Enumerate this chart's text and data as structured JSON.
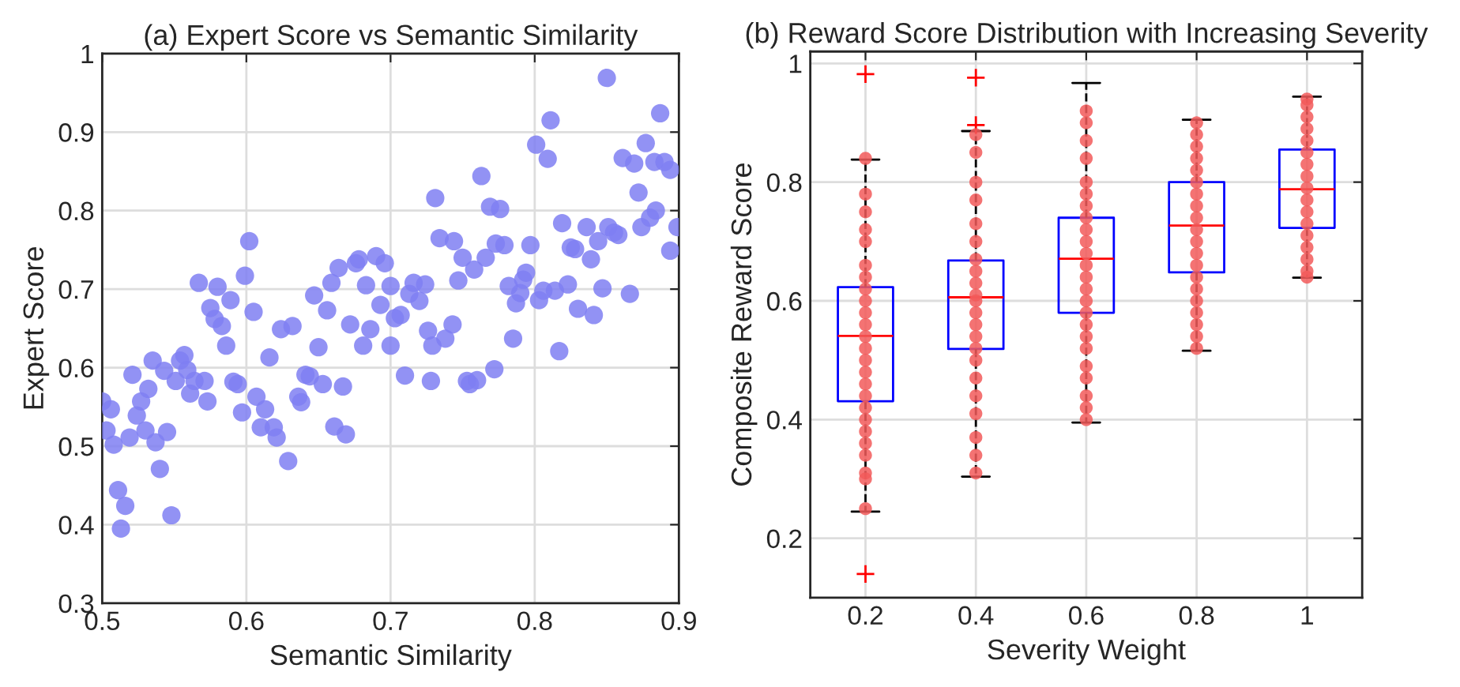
{
  "chart_data": [
    {
      "type": "scatter",
      "title": "(a) Expert Score vs Semantic Similarity",
      "xlabel": "Semantic Similarity",
      "ylabel": "Expert Score",
      "xlim": [
        0.5,
        0.9
      ],
      "xticks": [
        0.5,
        0.6,
        0.7,
        0.8,
        0.9
      ],
      "ylim": [
        0.3,
        1
      ],
      "yticks": [
        0.3,
        0.4,
        0.5,
        0.6,
        0.7,
        0.8,
        0.9,
        1
      ],
      "grid": true,
      "marker": "circle",
      "series": [
        {
          "color": "#7f7ff2",
          "x": [
            0.5,
            0.503,
            0.506,
            0.508,
            0.511,
            0.516,
            0.513,
            0.519,
            0.521,
            0.524,
            0.527,
            0.53,
            0.532,
            0.535,
            0.537,
            0.54,
            0.543,
            0.545,
            0.548,
            0.551,
            0.554,
            0.557,
            0.559,
            0.561,
            0.564,
            0.567,
            0.571,
            0.573,
            0.575,
            0.578,
            0.58,
            0.583,
            0.586,
            0.589,
            0.591,
            0.594,
            0.597,
            0.599,
            0.602,
            0.605,
            0.607,
            0.61,
            0.613,
            0.616,
            0.619,
            0.621,
            0.624,
            0.629,
            0.632,
            0.636,
            0.638,
            0.641,
            0.644,
            0.647,
            0.65,
            0.653,
            0.656,
            0.659,
            0.661,
            0.664,
            0.667,
            0.669,
            0.672,
            0.676,
            0.678,
            0.681,
            0.683,
            0.686,
            0.69,
            0.693,
            0.696,
            0.7,
            0.7,
            0.703,
            0.707,
            0.71,
            0.713,
            0.716,
            0.72,
            0.724,
            0.726,
            0.729,
            0.731,
            0.728,
            0.734,
            0.738,
            0.743,
            0.744,
            0.747,
            0.75,
            0.753,
            0.755,
            0.758,
            0.76,
            0.763,
            0.766,
            0.769,
            0.772,
            0.773,
            0.776,
            0.779,
            0.782,
            0.785,
            0.787,
            0.79,
            0.792,
            0.794,
            0.797,
            0.801,
            0.803,
            0.806,
            0.809,
            0.811,
            0.814,
            0.817,
            0.819,
            0.823,
            0.825,
            0.828,
            0.83,
            0.836,
            0.839,
            0.841,
            0.844,
            0.847,
            0.85,
            0.851,
            0.855,
            0.858,
            0.861,
            0.866,
            0.869,
            0.872,
            0.874,
            0.877,
            0.88,
            0.883,
            0.884,
            0.887,
            0.89,
            0.894,
            0.894,
            0.899
          ],
          "values": [
            0.557,
            0.52,
            0.547,
            0.502,
            0.444,
            0.424,
            0.395,
            0.511,
            0.591,
            0.539,
            0.557,
            0.52,
            0.573,
            0.609,
            0.505,
            0.471,
            0.596,
            0.518,
            0.412,
            0.583,
            0.609,
            0.616,
            0.597,
            0.567,
            0.583,
            0.708,
            0.583,
            0.557,
            0.676,
            0.662,
            0.703,
            0.653,
            0.628,
            0.686,
            0.582,
            0.579,
            0.543,
            0.717,
            0.761,
            0.671,
            0.563,
            0.524,
            0.547,
            0.613,
            0.524,
            0.511,
            0.649,
            0.481,
            0.653,
            0.563,
            0.556,
            0.591,
            0.589,
            0.692,
            0.626,
            0.579,
            0.673,
            0.708,
            0.525,
            0.727,
            0.576,
            0.515,
            0.655,
            0.733,
            0.738,
            0.628,
            0.705,
            0.649,
            0.742,
            0.68,
            0.733,
            0.704,
            0.628,
            0.663,
            0.667,
            0.59,
            0.694,
            0.708,
            0.685,
            0.706,
            0.647,
            0.628,
            0.816,
            0.583,
            0.765,
            0.637,
            0.655,
            0.761,
            0.711,
            0.74,
            0.583,
            0.579,
            0.725,
            0.584,
            0.844,
            0.74,
            0.805,
            0.598,
            0.758,
            0.802,
            0.756,
            0.704,
            0.637,
            0.682,
            0.695,
            0.712,
            0.721,
            0.756,
            0.884,
            0.686,
            0.698,
            0.866,
            0.915,
            0.698,
            0.621,
            0.784,
            0.706,
            0.753,
            0.751,
            0.675,
            0.779,
            0.738,
            0.667,
            0.761,
            0.701,
            0.969,
            0.779,
            0.772,
            0.769,
            0.867,
            0.694,
            0.86,
            0.823,
            0.779,
            0.886,
            0.791,
            0.862,
            0.8,
            0.924,
            0.862,
            0.852,
            0.749,
            0.779
          ]
        }
      ]
    },
    {
      "type": "box",
      "title": "(b) Reward Score Distribution with Increasing Severity",
      "xlabel": "Severity Weight",
      "ylabel": "Composite Reward Score",
      "xlim": [
        0.1,
        1.1
      ],
      "xticks": [
        0.2,
        0.4,
        0.6,
        0.8,
        1
      ],
      "ylim": [
        0.1,
        1.02
      ],
      "yticks": [
        0.2,
        0.4,
        0.6,
        0.8,
        1
      ],
      "grid": true,
      "series": [
        {
          "type": "box",
          "color": "#0000ff",
          "x": [
            0.2,
            0.4,
            0.6,
            0.8,
            1
          ],
          "boxes": [
            {
              "low": 0.245,
              "q1": 0.431,
              "median": 0.541,
              "q3": 0.623,
              "high": 0.838,
              "outliers": [
                0.982,
                0.14
              ]
            },
            {
              "low": 0.304,
              "q1": 0.519,
              "median": 0.606,
              "q3": 0.668,
              "high": 0.886,
              "outliers": [
                0.976,
                0.896
              ]
            },
            {
              "low": 0.395,
              "q1": 0.58,
              "median": 0.671,
              "q3": 0.74,
              "high": 0.967
            },
            {
              "low": 0.516,
              "q1": 0.648,
              "median": 0.727,
              "q3": 0.8,
              "high": 0.905
            },
            {
              "low": 0.639,
              "q1": 0.723,
              "median": 0.788,
              "q3": 0.855,
              "high": 0.944
            }
          ]
        },
        {
          "type": "scatter",
          "color": "#f25a5a",
          "marker": "circle",
          "x": [
            0.2,
            0.2,
            0.2,
            0.2,
            0.2,
            0.2,
            0.2,
            0.2,
            0.2,
            0.2,
            0.2,
            0.2,
            0.2,
            0.2,
            0.2,
            0.2,
            0.2,
            0.2,
            0.2,
            0.2,
            0.2,
            0.2,
            0.2,
            0.2,
            0.2,
            0.4,
            0.4,
            0.4,
            0.4,
            0.4,
            0.4,
            0.4,
            0.4,
            0.4,
            0.4,
            0.4,
            0.4,
            0.4,
            0.4,
            0.4,
            0.4,
            0.4,
            0.4,
            0.4,
            0.4,
            0.4,
            0.4,
            0.6,
            0.6,
            0.6,
            0.6,
            0.6,
            0.6,
            0.6,
            0.6,
            0.6,
            0.6,
            0.6,
            0.6,
            0.6,
            0.6,
            0.6,
            0.6,
            0.6,
            0.6,
            0.6,
            0.6,
            0.6,
            0.6,
            0.6,
            0.6,
            0.8,
            0.8,
            0.8,
            0.8,
            0.8,
            0.8,
            0.8,
            0.8,
            0.8,
            0.8,
            0.8,
            0.8,
            0.8,
            0.8,
            0.8,
            0.8,
            0.8,
            0.8,
            0.8,
            0.8,
            1,
            1,
            1,
            1,
            1,
            1,
            1,
            1,
            1,
            1,
            1,
            1,
            1,
            1,
            1,
            1,
            1
          ],
          "values": [
            0.78,
            0.75,
            0.72,
            0.7,
            0.66,
            0.64,
            0.62,
            0.6,
            0.58,
            0.56,
            0.54,
            0.52,
            0.5,
            0.48,
            0.46,
            0.44,
            0.42,
            0.4,
            0.38,
            0.36,
            0.34,
            0.31,
            0.3,
            0.25,
            0.84,
            0.88,
            0.85,
            0.8,
            0.77,
            0.73,
            0.7,
            0.67,
            0.65,
            0.63,
            0.61,
            0.6,
            0.58,
            0.56,
            0.54,
            0.52,
            0.5,
            0.47,
            0.44,
            0.41,
            0.37,
            0.34,
            0.31,
            0.92,
            0.9,
            0.87,
            0.84,
            0.8,
            0.78,
            0.76,
            0.74,
            0.72,
            0.7,
            0.68,
            0.66,
            0.64,
            0.62,
            0.6,
            0.58,
            0.56,
            0.54,
            0.52,
            0.49,
            0.47,
            0.44,
            0.42,
            0.4,
            0.9,
            0.88,
            0.86,
            0.84,
            0.82,
            0.8,
            0.78,
            0.76,
            0.74,
            0.72,
            0.7,
            0.68,
            0.66,
            0.64,
            0.62,
            0.6,
            0.58,
            0.56,
            0.54,
            0.52,
            0.94,
            0.93,
            0.91,
            0.89,
            0.87,
            0.85,
            0.83,
            0.81,
            0.79,
            0.77,
            0.75,
            0.73,
            0.71,
            0.69,
            0.67,
            0.65,
            0.64
          ]
        }
      ]
    }
  ]
}
